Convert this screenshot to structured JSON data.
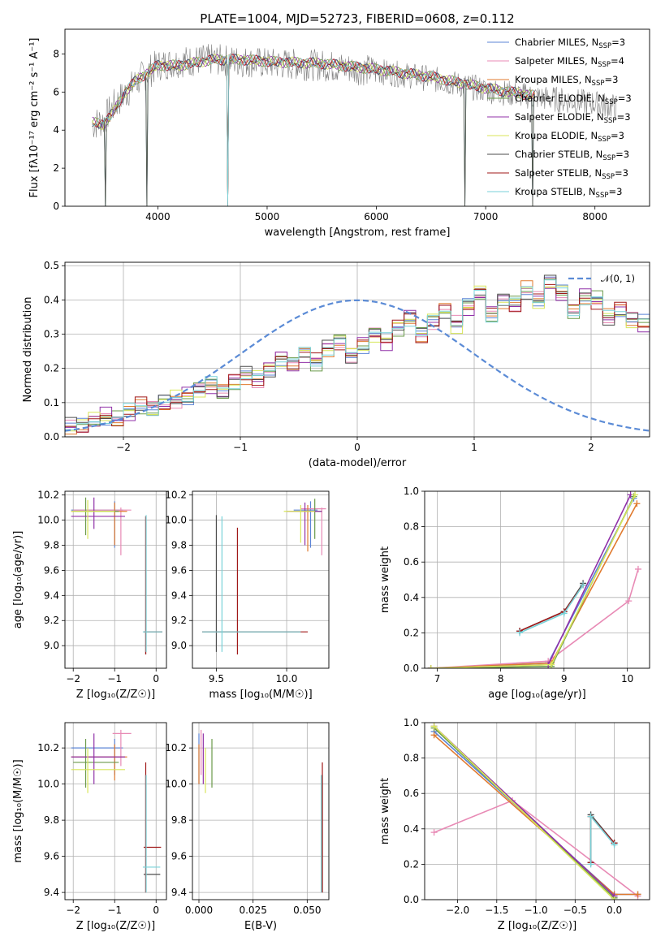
{
  "figure": {
    "title": "PLATE=1004, MJD=52723, FIBERID=0608, z=0.112"
  },
  "colors": {
    "Chabrier MILES": "#5b84d6",
    "Salpeter MILES": "#e88ab5",
    "Kroupa MILES": "#e07a2e",
    "Chabrier ELODIE": "#6a9a4a",
    "Salpeter ELODIE": "#9030a8",
    "Kroupa ELODIE": "#d8e65a",
    "Chabrier STELIB": "#4d4d4d",
    "Salpeter STELIB": "#a01818",
    "Kroupa STELIB": "#78d2d8",
    "normal": "#5b8bd6",
    "spectrum": "#808080"
  },
  "chart_data": [
    {
      "id": "spectrum",
      "type": "line",
      "xlabel": "wavelength [Angstrom, rest frame]",
      "ylabel": "Flux [fλ10⁻¹⁷ erg cm⁻² s⁻¹ A⁻¹]",
      "xlim": [
        3150,
        8500
      ],
      "ylim": [
        0,
        9.3
      ],
      "xticks": [
        4000,
        5000,
        6000,
        7000,
        8000
      ],
      "yticks": [
        0,
        2,
        4,
        6,
        8
      ],
      "legend_position": "top-right",
      "legend": [
        {
          "name": "Chabrier MILES",
          "nssp": "3"
        },
        {
          "name": "Salpeter MILES",
          "nssp": "4"
        },
        {
          "name": "Kroupa MILES",
          "nssp": "3"
        },
        {
          "name": "Chabrier ELODIE",
          "nssp": "3"
        },
        {
          "name": "Salpeter ELODIE",
          "nssp": "3"
        },
        {
          "name": "Kroupa ELODIE",
          "nssp": "3"
        },
        {
          "name": "Chabrier STELIB",
          "nssp": "3"
        },
        {
          "name": "Salpeter STELIB",
          "nssp": "3"
        },
        {
          "name": "Kroupa STELIB",
          "nssp": "3"
        }
      ],
      "data_envelope": [
        [
          3400,
          4.3
        ],
        [
          3500,
          4.5
        ],
        [
          3600,
          5.3
        ],
        [
          3700,
          5.9
        ],
        [
          3800,
          6.5
        ],
        [
          3900,
          7.0
        ],
        [
          4000,
          7.4
        ],
        [
          4200,
          7.6
        ],
        [
          4500,
          7.7
        ],
        [
          4800,
          7.6
        ],
        [
          5000,
          7.5
        ],
        [
          5500,
          7.4
        ],
        [
          6000,
          7.1
        ],
        [
          6500,
          6.7
        ],
        [
          7000,
          6.1
        ],
        [
          7500,
          5.7
        ],
        [
          8000,
          5.4
        ],
        [
          8200,
          5.2
        ]
      ],
      "model_envelope": [
        [
          3400,
          4.4
        ],
        [
          3500,
          4.3
        ],
        [
          3600,
          5.0
        ],
        [
          3700,
          6.0
        ],
        [
          3800,
          6.6
        ],
        [
          3900,
          7.0
        ],
        [
          4000,
          7.4
        ],
        [
          4200,
          7.4
        ],
        [
          4500,
          7.7
        ],
        [
          4800,
          7.7
        ],
        [
          5000,
          7.6
        ],
        [
          5500,
          7.5
        ],
        [
          6000,
          7.2
        ],
        [
          6500,
          6.8
        ],
        [
          7000,
          6.2
        ],
        [
          7450,
          5.8
        ]
      ],
      "absorption_dips": [
        3520,
        3900,
        4640,
        6810,
        7430
      ]
    },
    {
      "id": "residuals",
      "type": "step",
      "xlabel": "(data-model)/error",
      "ylabel": "Normed distribution",
      "xlim": [
        -2.5,
        2.5
      ],
      "ylim": [
        0,
        0.51
      ],
      "xticks": [
        -2,
        -1,
        0,
        1,
        2
      ],
      "yticks": [
        0,
        0.1,
        0.2,
        0.3,
        0.4,
        0.5
      ],
      "xtick_labels": [
        "−2",
        "−1",
        "0",
        "1",
        "2"
      ],
      "ytick_labels": [
        "0.0",
        "0.1",
        "0.2",
        "0.3",
        "0.4",
        "0.5"
      ],
      "legend": [
        {
          "name": "𝒩(0, 1)",
          "style": "dashed"
        }
      ],
      "legend_position": "top-right",
      "bin_width": 0.1,
      "x_start": -2.5,
      "base_counts": [
        0.03,
        0.03,
        0.05,
        0.06,
        0.05,
        0.07,
        0.09,
        0.08,
        0.1,
        0.11,
        0.12,
        0.14,
        0.15,
        0.13,
        0.16,
        0.18,
        0.17,
        0.2,
        0.23,
        0.21,
        0.24,
        0.22,
        0.26,
        0.28,
        0.24,
        0.27,
        0.3,
        0.28,
        0.32,
        0.35,
        0.3,
        0.34,
        0.37,
        0.33,
        0.38,
        0.42,
        0.36,
        0.4,
        0.39,
        0.43,
        0.4,
        0.45,
        0.42,
        0.37,
        0.41,
        0.4,
        0.35,
        0.37,
        0.34,
        0.33,
        0.3,
        0.31,
        0.27,
        0.26,
        0.28,
        0.22,
        0.24,
        0.21,
        0.2,
        0.19,
        0.2,
        0.18,
        0.15,
        0.17,
        0.14,
        0.15,
        0.12,
        0.1,
        0.11,
        0.09,
        0.08,
        0.09,
        0.07,
        0.06,
        0.07,
        0.05,
        0.05,
        0.04,
        0.03,
        0.04
      ]
    },
    {
      "id": "age-vs-Z",
      "type": "errorbar",
      "xlabel": "Z [log₁₀(Z/Z☉)]",
      "ylabel": "age  [log₁₀(age/yr)]",
      "xlim": [
        -2.2,
        0.25
      ],
      "ylim": [
        8.82,
        10.23
      ],
      "xticks": [
        -2,
        -1,
        0
      ],
      "yticks": [
        9.0,
        9.2,
        9.4,
        9.6,
        9.8,
        10.0,
        10.2
      ],
      "xtick_labels": [
        "−2",
        "−1",
        "0"
      ],
      "ytick_labels": [
        "9.0",
        "9.2",
        "9.4",
        "9.6",
        "9.8",
        "10.0",
        "10.2"
      ],
      "points": [
        {
          "s": "Chabrier MILES",
          "x": -1.0,
          "y": 10.08,
          "xl": -2.05,
          "xh": -0.8,
          "yl": 9.78,
          "yh": 10.15
        },
        {
          "s": "Salpeter MILES",
          "x": -0.85,
          "y": 10.08,
          "xl": -2.0,
          "xh": -0.6,
          "yl": 9.72,
          "yh": 10.1
        },
        {
          "s": "Kroupa MILES",
          "x": -1.0,
          "y": 10.07,
          "xl": -2.05,
          "xh": -0.7,
          "yl": 9.8,
          "yh": 10.14
        },
        {
          "s": "Chabrier ELODIE",
          "x": -1.7,
          "y": 10.07,
          "xl": -2.0,
          "xh": -0.9,
          "yl": 9.88,
          "yh": 10.18
        },
        {
          "s": "Salpeter ELODIE",
          "x": -1.5,
          "y": 10.03,
          "xl": -2.05,
          "xh": -0.75,
          "yl": 9.93,
          "yh": 10.18
        },
        {
          "s": "Kroupa ELODIE",
          "x": -1.65,
          "y": 10.07,
          "xl": -2.05,
          "xh": -1.0,
          "yl": 9.85,
          "yh": 10.16
        },
        {
          "s": "Chabrier STELIB",
          "x": -0.25,
          "y": 9.11,
          "xl": -0.3,
          "xh": 0.15,
          "yl": 8.93,
          "yh": 10.03
        },
        {
          "s": "Salpeter STELIB",
          "x": -0.25,
          "y": 9.11,
          "xl": -0.3,
          "xh": 0.15,
          "yl": 8.93,
          "yh": 10.03
        },
        {
          "s": "Kroupa STELIB",
          "x": -0.24,
          "y": 9.11,
          "xl": -0.32,
          "xh": 0.15,
          "yl": 8.95,
          "yh": 10.04
        }
      ]
    },
    {
      "id": "age-vs-mass",
      "type": "errorbar",
      "xlabel": "mass [log₁₀(M/M☉)]",
      "ylabel": "",
      "xlim": [
        9.33,
        10.3
      ],
      "ylim": [
        8.82,
        10.23
      ],
      "xticks": [
        9.5,
        10.0
      ],
      "yticks": [
        9.0,
        9.2,
        9.4,
        9.6,
        9.8,
        10.0,
        10.2
      ],
      "xtick_labels": [
        "9.5",
        "10.0"
      ],
      "ytick_labels": [
        "9.0",
        "9.2",
        "9.4",
        "9.6",
        "9.8",
        "10.0",
        "10.2"
      ],
      "points": [
        {
          "s": "Chabrier MILES",
          "x": 10.17,
          "y": 10.08,
          "xl": 10.05,
          "xh": 10.22,
          "yl": 9.78,
          "yh": 10.15
        },
        {
          "s": "Salpeter MILES",
          "x": 10.25,
          "y": 10.09,
          "xl": 10.1,
          "xh": 10.28,
          "yl": 9.72,
          "yh": 10.1
        },
        {
          "s": "Kroupa MILES",
          "x": 10.15,
          "y": 10.07,
          "xl": 10.02,
          "xh": 10.22,
          "yl": 9.75,
          "yh": 10.12
        },
        {
          "s": "Chabrier ELODIE",
          "x": 10.2,
          "y": 10.07,
          "xl": 10.05,
          "xh": 10.25,
          "yl": 9.85,
          "yh": 10.17
        },
        {
          "s": "Salpeter ELODIE",
          "x": 10.13,
          "y": 10.07,
          "xl": 10.0,
          "xh": 10.25,
          "yl": 9.8,
          "yh": 10.14
        },
        {
          "s": "Kroupa ELODIE",
          "x": 10.1,
          "y": 10.07,
          "xl": 9.98,
          "xh": 10.2,
          "yl": 9.82,
          "yh": 10.12
        },
        {
          "s": "Chabrier STELIB",
          "x": 9.5,
          "y": 9.11,
          "xl": 9.4,
          "xh": 10.1,
          "yl": 8.95,
          "yh": 10.04
        },
        {
          "s": "Salpeter STELIB",
          "x": 9.65,
          "y": 9.11,
          "xl": 9.4,
          "xh": 10.15,
          "yl": 8.93,
          "yh": 9.94
        },
        {
          "s": "Kroupa STELIB",
          "x": 9.54,
          "y": 9.11,
          "xl": 9.4,
          "xh": 10.1,
          "yl": 8.95,
          "yh": 10.03
        }
      ]
    },
    {
      "id": "massweight-vs-age",
      "type": "line",
      "xlabel": "age  [log₁₀(age/yr)]",
      "ylabel": "mass weight",
      "xlim": [
        6.8,
        10.35
      ],
      "ylim": [
        0,
        1.0
      ],
      "xticks": [
        7,
        8,
        9,
        10
      ],
      "yticks": [
        0,
        0.2,
        0.4,
        0.6,
        0.8,
        1.0
      ],
      "xtick_labels": [
        "7",
        "8",
        "9",
        "10"
      ],
      "ytick_labels": [
        "0.0",
        "0.2",
        "0.4",
        "0.6",
        "0.8",
        "1.0"
      ],
      "series": [
        {
          "name": "Chabrier MILES",
          "x": [
            6.9,
            8.75,
            10.1
          ],
          "y": [
            0.0,
            0.03,
            0.96
          ]
        },
        {
          "name": "Salpeter MILES",
          "x": [
            6.9,
            8.75,
            10.02,
            10.17
          ],
          "y": [
            0.0,
            0.04,
            0.38,
            0.56
          ]
        },
        {
          "name": "Kroupa MILES",
          "x": [
            6.9,
            8.8,
            10.15
          ],
          "y": [
            0.0,
            0.03,
            0.93
          ]
        },
        {
          "name": "Chabrier ELODIE",
          "x": [
            6.9,
            8.8,
            10.1
          ],
          "y": [
            0.0,
            0.01,
            0.97
          ]
        },
        {
          "name": "Salpeter ELODIE",
          "x": [
            6.9,
            8.75,
            10.05
          ],
          "y": [
            0.0,
            0.02,
            0.98
          ]
        },
        {
          "name": "Kroupa ELODIE",
          "x": [
            6.9,
            8.8,
            10.12
          ],
          "y": [
            0.0,
            0.02,
            0.98
          ]
        },
        {
          "name": "Chabrier STELIB",
          "x": [
            8.3,
            9.0,
            9.3
          ],
          "y": [
            0.21,
            0.32,
            0.48
          ]
        },
        {
          "name": "Salpeter STELIB",
          "x": [
            8.3,
            9.0,
            9.3
          ],
          "y": [
            0.21,
            0.32,
            0.47
          ]
        },
        {
          "name": "Kroupa STELIB",
          "x": [
            8.3,
            9.0,
            9.3
          ],
          "y": [
            0.2,
            0.31,
            0.47
          ]
        }
      ]
    },
    {
      "id": "mass-vs-Z",
      "type": "errorbar",
      "xlabel": "Z [log₁₀(Z/Z☉)]",
      "ylabel": "mass [log₁₀(M/M☉)]",
      "xlim": [
        -2.2,
        0.25
      ],
      "ylim": [
        9.36,
        10.34
      ],
      "xticks": [
        -2,
        -1,
        0
      ],
      "yticks": [
        9.4,
        9.6,
        9.8,
        10.0,
        10.2
      ],
      "xtick_labels": [
        "−2",
        "−1",
        "0"
      ],
      "ytick_labels": [
        "9.4",
        "9.6",
        "9.8",
        "10.0",
        "10.2"
      ],
      "points": [
        {
          "s": "Chabrier MILES",
          "x": -1.0,
          "y": 10.2,
          "xl": -2.05,
          "xh": -0.8,
          "yl": 10.05,
          "yh": 10.25
        },
        {
          "s": "Salpeter MILES",
          "x": -0.85,
          "y": 10.28,
          "xl": -1.05,
          "xh": -0.6,
          "yl": 10.1,
          "yh": 10.3
        },
        {
          "s": "Kroupa MILES",
          "x": -1.0,
          "y": 10.15,
          "xl": -2.05,
          "xh": -0.7,
          "yl": 10.02,
          "yh": 10.22
        },
        {
          "s": "Chabrier ELODIE",
          "x": -1.7,
          "y": 10.12,
          "xl": -2.0,
          "xh": -0.9,
          "yl": 9.98,
          "yh": 10.25
        },
        {
          "s": "Salpeter ELODIE",
          "x": -1.5,
          "y": 10.15,
          "xl": -2.05,
          "xh": -0.75,
          "yl": 10.0,
          "yh": 10.28
        },
        {
          "s": "Kroupa ELODIE",
          "x": -1.65,
          "y": 10.08,
          "xl": -2.05,
          "xh": -0.75,
          "yl": 9.95,
          "yh": 10.2
        },
        {
          "s": "Chabrier STELIB",
          "x": -0.25,
          "y": 9.5,
          "xl": -0.3,
          "xh": 0.1,
          "yl": 9.4,
          "yh": 10.05
        },
        {
          "s": "Salpeter STELIB",
          "x": -0.25,
          "y": 9.65,
          "xl": -0.3,
          "xh": 0.12,
          "yl": 9.4,
          "yh": 10.12
        },
        {
          "s": "Kroupa STELIB",
          "x": -0.24,
          "y": 9.54,
          "xl": -0.32,
          "xh": 0.1,
          "yl": 9.4,
          "yh": 10.05
        }
      ]
    },
    {
      "id": "mass-vs-ebv",
      "type": "errorbar",
      "xlabel": "E(B-V)",
      "ylabel": "",
      "xlim": [
        -0.003,
        0.06
      ],
      "ylim": [
        9.36,
        10.34
      ],
      "xticks": [
        0.0,
        0.025,
        0.05
      ],
      "yticks": [
        9.4,
        9.6,
        9.8,
        10.0,
        10.2
      ],
      "xtick_labels": [
        "0.000",
        "0.025",
        "0.050"
      ],
      "ytick_labels": [
        "9.4",
        "9.6",
        "9.8",
        "10.0",
        "10.2"
      ],
      "points": [
        {
          "s": "Chabrier MILES",
          "x": 0.0,
          "y": 10.2,
          "yl": 10.0,
          "yh": 10.28
        },
        {
          "s": "Salpeter MILES",
          "x": 0.001,
          "y": 10.28,
          "yl": 10.05,
          "yh": 10.3
        },
        {
          "s": "Kroupa MILES",
          "x": 0.0,
          "y": 10.15,
          "yl": 10.0,
          "yh": 10.22
        },
        {
          "s": "Chabrier ELODIE",
          "x": 0.006,
          "y": 10.12,
          "yl": 9.98,
          "yh": 10.25
        },
        {
          "s": "Salpeter ELODIE",
          "x": 0.002,
          "y": 10.15,
          "yl": 10.0,
          "yh": 10.28
        },
        {
          "s": "Kroupa ELODIE",
          "x": 0.003,
          "y": 10.1,
          "yl": 9.95,
          "yh": 10.2
        },
        {
          "s": "Chabrier STELIB",
          "x": 0.057,
          "y": 9.5,
          "yl": 9.4,
          "yh": 10.05
        },
        {
          "s": "Salpeter STELIB",
          "x": 0.057,
          "y": 9.65,
          "yl": 9.4,
          "yh": 10.12
        },
        {
          "s": "Kroupa STELIB",
          "x": 0.0565,
          "y": 9.54,
          "yl": 9.4,
          "yh": 10.05
        }
      ]
    },
    {
      "id": "massweight-vs-Z",
      "type": "line",
      "xlabel": "Z [log₁₀(Z/Z☉)]",
      "ylabel": "mass weight",
      "xlim": [
        -2.42,
        0.45
      ],
      "ylim": [
        0,
        1.0
      ],
      "xticks": [
        -2.0,
        -1.5,
        -1.0,
        -0.5,
        0.0
      ],
      "yticks": [
        0,
        0.2,
        0.4,
        0.6,
        0.8,
        1.0
      ],
      "xtick_labels": [
        "−2.0",
        "−1.5",
        "−1.0",
        "−0.5",
        "0.0"
      ],
      "ytick_labels": [
        "0.0",
        "0.2",
        "0.4",
        "0.6",
        "0.8",
        "1.0"
      ],
      "series": [
        {
          "name": "Chabrier MILES",
          "x": [
            -2.3,
            0.0,
            0.3
          ],
          "y": [
            0.95,
            0.03,
            0.03
          ]
        },
        {
          "name": "Salpeter MILES",
          "x": [
            -2.3,
            -1.3,
            0.3
          ],
          "y": [
            0.38,
            0.56,
            0.02
          ]
        },
        {
          "name": "Kroupa MILES",
          "x": [
            -2.3,
            0.0,
            0.3
          ],
          "y": [
            0.93,
            0.03,
            0.03
          ]
        },
        {
          "name": "Chabrier ELODIE",
          "x": [
            -2.3,
            0.0
          ],
          "y": [
            0.97,
            0.01
          ]
        },
        {
          "name": "Salpeter ELODIE",
          "x": [
            -2.3,
            0.0
          ],
          "y": [
            0.98,
            0.02
          ]
        },
        {
          "name": "Kroupa ELODIE",
          "x": [
            -2.3,
            0.0
          ],
          "y": [
            0.98,
            0.0
          ]
        },
        {
          "name": "Chabrier STELIB",
          "x": [
            -0.3,
            -0.3,
            0.0
          ],
          "y": [
            0.21,
            0.48,
            0.32
          ]
        },
        {
          "name": "Salpeter STELIB",
          "x": [
            -0.3,
            -0.3,
            0.0
          ],
          "y": [
            0.21,
            0.47,
            0.32
          ]
        },
        {
          "name": "Kroupa STELIB",
          "x": [
            -0.3,
            -0.3,
            0.0
          ],
          "y": [
            0.2,
            0.47,
            0.31
          ]
        }
      ]
    }
  ]
}
